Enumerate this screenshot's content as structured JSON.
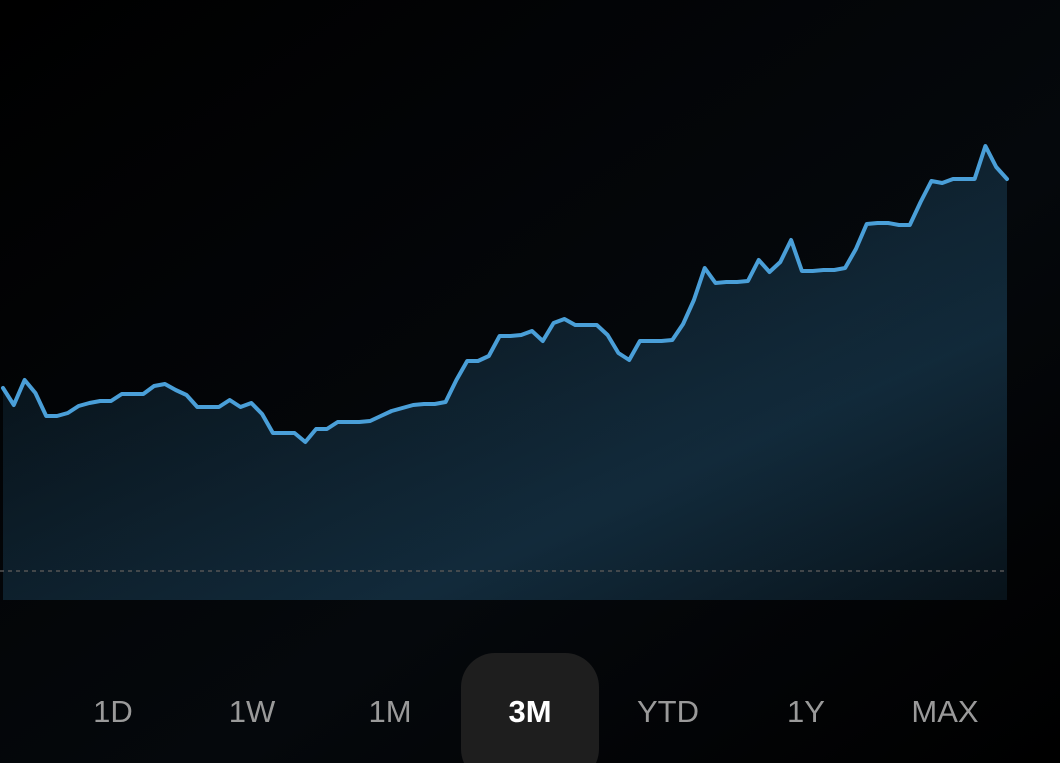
{
  "chart_data": {
    "type": "line",
    "values": [
      212,
      195,
      220,
      207,
      184,
      184,
      187,
      194,
      197,
      199,
      199,
      206,
      206,
      206,
      214,
      216,
      210,
      205,
      193,
      193,
      193,
      200,
      193,
      197,
      186,
      167,
      167,
      167,
      158,
      171,
      171,
      178,
      178,
      178,
      179,
      184,
      189,
      192,
      195,
      196,
      196,
      198,
      220,
      239,
      239,
      244,
      264,
      264,
      265,
      269,
      259,
      277,
      281,
      275,
      275,
      275,
      265,
      247,
      240,
      259,
      259,
      259,
      260,
      276,
      300,
      332,
      317,
      318,
      318,
      319,
      340,
      328,
      338,
      360,
      329,
      329,
      330,
      330,
      332,
      351,
      376,
      377,
      377,
      375,
      375,
      398,
      419,
      417,
      421,
      421,
      421,
      454,
      433,
      421
    ],
    "ylim": [
      0,
      600
    ],
    "baseline": 29,
    "color": "#4a9fd8",
    "fill_color": "#2a6a92"
  },
  "range_buttons": [
    "1D",
    "1W",
    "1M",
    "3M",
    "YTD",
    "1Y",
    "MAX"
  ],
  "active_range_index": 3
}
